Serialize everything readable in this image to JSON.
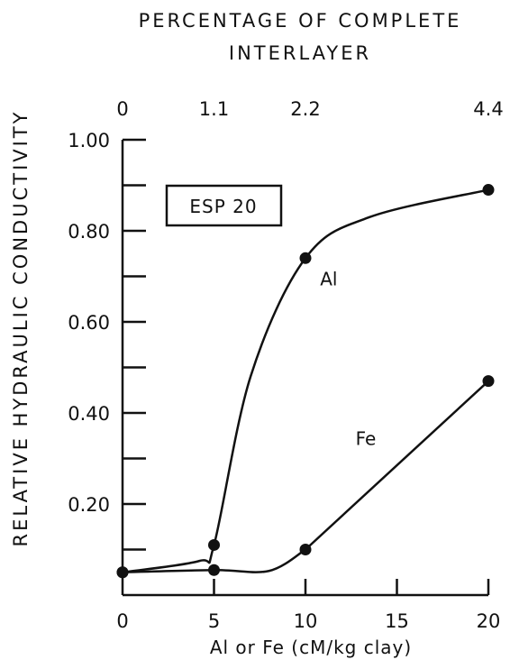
{
  "chart_data": {
    "type": "line",
    "title": "",
    "top_axis": {
      "title_lines": [
        "PERCENTAGE OF COMPLETE",
        "INTERLAYER"
      ],
      "ticks": [
        {
          "x": 0,
          "label": "0"
        },
        {
          "x": 5,
          "label": "1.1"
        },
        {
          "x": 10,
          "label": "2.2"
        },
        {
          "x": 20,
          "label": "4.4"
        }
      ]
    },
    "xlabel": "Al or Fe (cM/kg clay)",
    "ylabel": "RELATIVE HYDRAULIC CONDUCTIVITY",
    "xlim": [
      0,
      20
    ],
    "ylim": [
      0,
      1.0
    ],
    "x_ticks": [
      0,
      5,
      10,
      15,
      20
    ],
    "x_tick_labels": [
      "0",
      "5",
      "10",
      "15",
      "20"
    ],
    "y_ticks": [
      0.2,
      0.4,
      0.6,
      0.8,
      1.0
    ],
    "y_tick_labels": [
      "0.20",
      "0.40",
      "0.60",
      "0.80",
      "1.00"
    ],
    "y_minor_ticks": [
      0.1,
      0.3,
      0.5,
      0.7,
      0.9
    ],
    "grid": false,
    "annotation": "ESP 20",
    "series": [
      {
        "name": "Al",
        "x": [
          0,
          5,
          10,
          20
        ],
        "values": [
          0.05,
          0.11,
          0.74,
          0.89
        ]
      },
      {
        "name": "Fe",
        "x": [
          0,
          5,
          10,
          20
        ],
        "values": [
          0.05,
          0.055,
          0.1,
          0.47
        ]
      }
    ]
  }
}
